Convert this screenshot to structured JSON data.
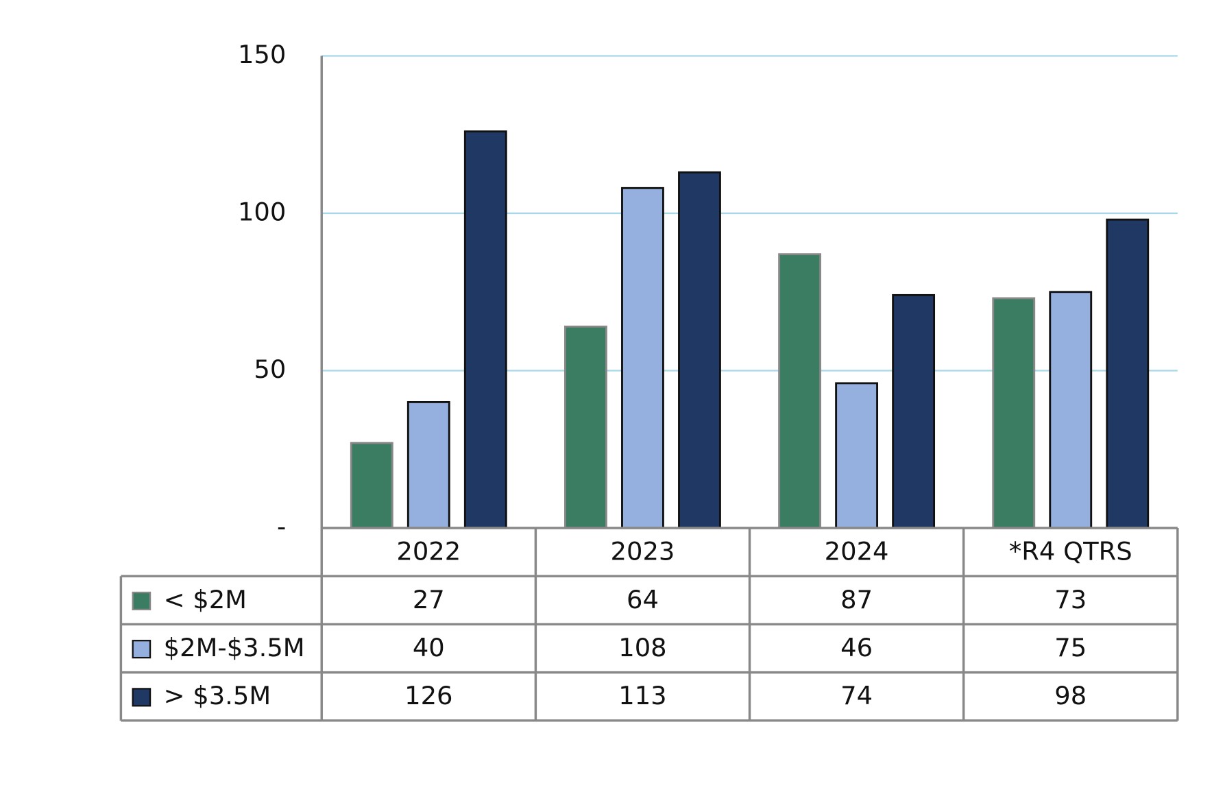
{
  "chart_data": {
    "type": "bar",
    "categories": [
      "2022",
      "2023",
      "2024",
      "*R4 QTRS"
    ],
    "series": [
      {
        "name": "< $2M",
        "color": "#3a7d63",
        "values": [
          27,
          64,
          87,
          73
        ]
      },
      {
        "name": "$2M-$3.5M",
        "color": "#95b0de",
        "values": [
          40,
          108,
          46,
          75
        ]
      },
      {
        "name": "> $3.5M",
        "color": "#203864",
        "values": [
          126,
          113,
          74,
          98
        ]
      }
    ],
    "ylim": [
      0,
      150
    ],
    "yticks": [
      {
        "value": 0,
        "label": "-"
      },
      50,
      100,
      150
    ],
    "grid": true,
    "data_table": true
  }
}
